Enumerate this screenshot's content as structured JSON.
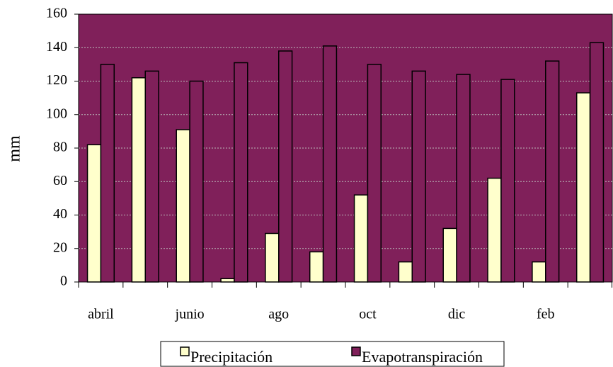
{
  "chart_data": {
    "type": "bar",
    "y_label": "mm",
    "categories": [
      "abril",
      null,
      "junio",
      null,
      "ago",
      null,
      "oct",
      null,
      "dic",
      null,
      "feb",
      null
    ],
    "series": [
      {
        "name": "Precipitación",
        "color": "#ffffcc",
        "values": [
          82,
          122,
          91,
          2,
          29,
          18,
          52,
          12,
          32,
          62,
          12,
          113
        ]
      },
      {
        "name": "Evapotranspiración",
        "color": "#80205a",
        "values": [
          130,
          126,
          120,
          131,
          138,
          141,
          130,
          126,
          124,
          121,
          132,
          143
        ]
      }
    ],
    "ylim": [
      0,
      160
    ],
    "yticks": [
      0,
      20,
      40,
      60,
      80,
      100,
      120,
      140,
      160
    ],
    "grid": true,
    "legend": "bottom",
    "plot_background": "#80205a"
  }
}
